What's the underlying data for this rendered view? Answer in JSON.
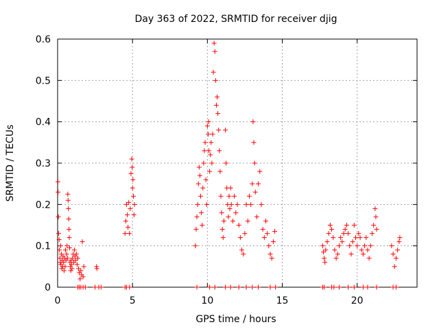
{
  "chart_data": {
    "type": "scatter",
    "title": "Day 363 of 2022, SRMTID for receiver djig",
    "xlabel": "GPS time / hours",
    "ylabel": "SRMTID / TECUs",
    "xlim": [
      0,
      24
    ],
    "ylim": [
      0,
      0.6
    ],
    "grid": true,
    "marker": "+",
    "color": "#ff0000",
    "x_ticks": [
      0,
      5,
      10,
      15,
      20
    ],
    "y_ticks": [
      0,
      0.1,
      0.2,
      0.3,
      0.4,
      0.5,
      0.6
    ],
    "x_tick_labels": [
      "0",
      "5",
      "10",
      "15",
      "20"
    ],
    "y_tick_labels": [
      "0",
      "0.1",
      "0.2",
      "0.3",
      "0.4",
      "0.5",
      "0.6"
    ],
    "series": [
      {
        "name": "SRMTID",
        "points": [
          [
            0.02,
            0.255
          ],
          [
            0.03,
            0.23
          ],
          [
            0.05,
            0.17
          ],
          [
            0.07,
            0.13
          ],
          [
            0.1,
            0.115
          ],
          [
            0.12,
            0.09
          ],
          [
            0.15,
            0.07
          ],
          [
            0.18,
            0.06
          ],
          [
            0.2,
            0.1
          ],
          [
            0.22,
            0.055
          ],
          [
            0.25,
            0.08
          ],
          [
            0.28,
            0.045
          ],
          [
            0.3,
            0.065
          ],
          [
            0.33,
            0.05
          ],
          [
            0.36,
            0.075
          ],
          [
            0.4,
            0.06
          ],
          [
            0.43,
            0.04
          ],
          [
            0.46,
            0.07
          ],
          [
            0.5,
            0.05
          ],
          [
            0.53,
            0.09
          ],
          [
            0.56,
            0.065
          ],
          [
            0.6,
            0.08
          ],
          [
            0.63,
            0.1
          ],
          [
            0.66,
            0.07
          ],
          [
            0.68,
            0.225
          ],
          [
            0.7,
            0.21
          ],
          [
            0.72,
            0.19
          ],
          [
            0.74,
            0.165
          ],
          [
            0.76,
            0.14
          ],
          [
            0.78,
            0.12
          ],
          [
            0.8,
            0.095
          ],
          [
            0.82,
            0.06
          ],
          [
            0.85,
            0.05
          ],
          [
            0.88,
            0.04
          ],
          [
            0.9,
            0.065
          ],
          [
            0.93,
            0.055
          ],
          [
            0.96,
            0.045
          ],
          [
            1.0,
            0.07
          ],
          [
            1.04,
            0.08
          ],
          [
            1.08,
            0.06
          ],
          [
            1.12,
            0.09
          ],
          [
            1.16,
            0.075
          ],
          [
            1.2,
            0.065
          ],
          [
            1.25,
            0.08
          ],
          [
            1.3,
            0.055
          ],
          [
            1.35,
            0.07
          ],
          [
            1.4,
            0.045
          ],
          [
            1.45,
            0.035
          ],
          [
            1.5,
            0.02
          ],
          [
            1.55,
            0.04
          ],
          [
            1.6,
            0.03
          ],
          [
            1.65,
            0.11
          ],
          [
            1.7,
            0.025
          ],
          [
            1.75,
            0.05
          ],
          [
            2.6,
            0.05
          ],
          [
            2.62,
            0.045
          ],
          [
            4.5,
            0.13
          ],
          [
            4.55,
            0.16
          ],
          [
            4.6,
            0.2
          ],
          [
            4.65,
            0.175
          ],
          [
            4.7,
            0.145
          ],
          [
            4.75,
            0.205
          ],
          [
            4.8,
            0.13
          ],
          [
            4.85,
            0.19
          ],
          [
            4.9,
            0.275
          ],
          [
            4.95,
            0.31
          ],
          [
            4.98,
            0.29
          ],
          [
            5.0,
            0.24
          ],
          [
            5.03,
            0.26
          ],
          [
            5.06,
            0.22
          ],
          [
            5.1,
            0.175
          ],
          [
            5.13,
            0.2
          ],
          [
            9.2,
            0.1
          ],
          [
            9.25,
            0.14
          ],
          [
            9.3,
            0.17
          ],
          [
            9.35,
            0.2
          ],
          [
            9.4,
            0.25
          ],
          [
            9.45,
            0.29
          ],
          [
            9.5,
            0.27
          ],
          [
            9.55,
            0.22
          ],
          [
            9.6,
            0.18
          ],
          [
            9.65,
            0.15
          ],
          [
            9.7,
            0.24
          ],
          [
            9.75,
            0.3
          ],
          [
            9.8,
            0.33
          ],
          [
            9.85,
            0.35
          ],
          [
            9.9,
            0.26
          ],
          [
            9.95,
            0.2
          ],
          [
            10.0,
            0.39
          ],
          [
            10.05,
            0.37
          ],
          [
            10.08,
            0.4
          ],
          [
            10.1,
            0.33
          ],
          [
            10.15,
            0.28
          ],
          [
            10.2,
            0.32
          ],
          [
            10.25,
            0.35
          ],
          [
            10.3,
            0.3
          ],
          [
            10.35,
            0.37
          ],
          [
            10.4,
            0.52
          ],
          [
            10.45,
            0.59
          ],
          [
            10.5,
            0.57
          ],
          [
            10.55,
            0.5
          ],
          [
            10.6,
            0.44
          ],
          [
            10.65,
            0.46
          ],
          [
            10.7,
            0.42
          ],
          [
            10.75,
            0.38
          ],
          [
            10.8,
            0.33
          ],
          [
            10.85,
            0.28
          ],
          [
            10.9,
            0.22
          ],
          [
            10.95,
            0.18
          ],
          [
            11.0,
            0.14
          ],
          [
            11.05,
            0.12
          ],
          [
            11.1,
            0.16
          ],
          [
            11.2,
            0.38
          ],
          [
            11.25,
            0.3
          ],
          [
            11.3,
            0.24
          ],
          [
            11.35,
            0.2
          ],
          [
            11.4,
            0.17
          ],
          [
            11.45,
            0.22
          ],
          [
            11.5,
            0.19
          ],
          [
            11.55,
            0.24
          ],
          [
            11.6,
            0.2
          ],
          [
            11.7,
            0.16
          ],
          [
            11.8,
            0.22
          ],
          [
            11.9,
            0.18
          ],
          [
            12.0,
            0.2
          ],
          [
            12.1,
            0.15
          ],
          [
            12.2,
            0.12
          ],
          [
            12.3,
            0.09
          ],
          [
            12.4,
            0.08
          ],
          [
            12.5,
            0.13
          ],
          [
            12.6,
            0.2
          ],
          [
            12.7,
            0.16
          ],
          [
            12.8,
            0.22
          ],
          [
            12.9,
            0.2
          ],
          [
            13.0,
            0.25
          ],
          [
            13.05,
            0.4
          ],
          [
            13.1,
            0.35
          ],
          [
            13.15,
            0.3
          ],
          [
            13.2,
            0.23
          ],
          [
            13.3,
            0.17
          ],
          [
            13.4,
            0.25
          ],
          [
            13.5,
            0.28
          ],
          [
            13.6,
            0.2
          ],
          [
            13.7,
            0.14
          ],
          [
            13.8,
            0.12
          ],
          [
            13.9,
            0.16
          ],
          [
            14.0,
            0.13
          ],
          [
            14.1,
            0.1
          ],
          [
            14.2,
            0.08
          ],
          [
            14.3,
            0.07
          ],
          [
            14.4,
            0.11
          ],
          [
            14.5,
            0.135
          ],
          [
            17.7,
            0.1
          ],
          [
            17.75,
            0.085
          ],
          [
            17.8,
            0.07
          ],
          [
            17.85,
            0.06
          ],
          [
            17.9,
            0.09
          ],
          [
            18.0,
            0.11
          ],
          [
            18.1,
            0.13
          ],
          [
            18.2,
            0.15
          ],
          [
            18.3,
            0.14
          ],
          [
            18.4,
            0.12
          ],
          [
            18.5,
            0.09
          ],
          [
            18.6,
            0.07
          ],
          [
            18.7,
            0.08
          ],
          [
            18.8,
            0.1
          ],
          [
            18.9,
            0.12
          ],
          [
            19.0,
            0.11
          ],
          [
            19.1,
            0.13
          ],
          [
            19.2,
            0.14
          ],
          [
            19.3,
            0.15
          ],
          [
            19.4,
            0.13
          ],
          [
            19.5,
            0.1
          ],
          [
            19.6,
            0.08
          ],
          [
            19.7,
            0.11
          ],
          [
            19.8,
            0.15
          ],
          [
            19.9,
            0.12
          ],
          [
            20.0,
            0.1
          ],
          [
            20.1,
            0.13
          ],
          [
            20.2,
            0.12
          ],
          [
            20.3,
            0.09
          ],
          [
            20.4,
            0.08
          ],
          [
            20.5,
            0.1
          ],
          [
            20.6,
            0.12
          ],
          [
            20.7,
            0.09
          ],
          [
            20.8,
            0.07
          ],
          [
            20.9,
            0.1
          ],
          [
            21.0,
            0.13
          ],
          [
            21.1,
            0.15
          ],
          [
            21.2,
            0.19
          ],
          [
            21.25,
            0.17
          ],
          [
            21.3,
            0.14
          ],
          [
            22.3,
            0.1
          ],
          [
            22.4,
            0.08
          ],
          [
            22.5,
            0.05
          ],
          [
            22.6,
            0.07
          ],
          [
            22.7,
            0.09
          ],
          [
            22.8,
            0.11
          ],
          [
            22.85,
            0.12
          ]
        ]
      }
    ],
    "zero_points_x": [
      1.35,
      1.45,
      1.55,
      1.7,
      1.85,
      2.5,
      2.75,
      2.9,
      4.5,
      4.6,
      4.8,
      9.3,
      10.15,
      10.5,
      11.2,
      11.55,
      12.1,
      12.6,
      13.0,
      13.4,
      14.2,
      14.55,
      17.7,
      17.8,
      18.3,
      18.45,
      18.8,
      19.4,
      19.8,
      20.4,
      20.7,
      21.3,
      22.4,
      22.6
    ]
  }
}
